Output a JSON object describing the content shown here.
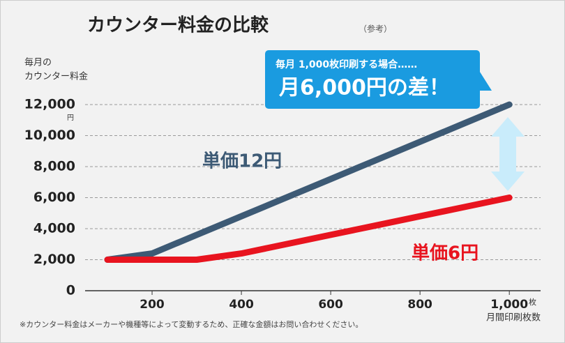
{
  "chart_data": {
    "type": "line",
    "title": "カウンター料金の比較",
    "subtitle": "（参考）",
    "y_label": [
      "毎月の",
      "カウンター料金"
    ],
    "y_unit": "円",
    "x_unit": "枚",
    "x_label": "月間印刷枚数",
    "note": "※カウンター料金はメーカーや機種等によって変動するため、正確な金額はお問い合わせください。",
    "callout": [
      "毎月 1,000枚印刷する場合……",
      "月6,000円の差！"
    ],
    "x": [
      100,
      200,
      300,
      400,
      500,
      600,
      700,
      800,
      900,
      1000
    ],
    "series": [
      {
        "name": "単価12円",
        "color": "#3d5a75",
        "values": [
          2000,
          2400,
          3600,
          4800,
          6000,
          7200,
          8400,
          9600,
          10800,
          12000
        ]
      },
      {
        "name": "単価6円",
        "color": "#e8141f",
        "values": [
          2000,
          2000,
          2000,
          2400,
          3000,
          3600,
          4200,
          4800,
          5400,
          6000
        ]
      }
    ],
    "xlim": [
      50,
      1070
    ],
    "xticks": [
      200,
      400,
      600,
      800,
      {
        "value": 1000,
        "label": "1,000"
      }
    ],
    "ylim": [
      0,
      12000
    ],
    "yticks": [
      0,
      {
        "value": 2000,
        "label": "2,000"
      },
      {
        "value": 4000,
        "label": "4,000"
      },
      {
        "value": 6000,
        "label": "6,000"
      },
      {
        "value": 8000,
        "label": "8,000"
      },
      {
        "value": 10000,
        "label": "10,000"
      },
      {
        "value": 12000,
        "label": "12,000"
      }
    ],
    "grid": true
  }
}
